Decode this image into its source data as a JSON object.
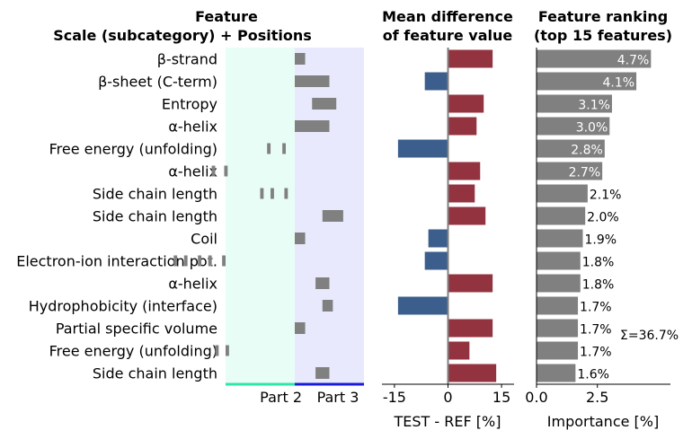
{
  "chart_data": [
    {
      "type": "table",
      "title": [
        "Feature",
        "Scale (subcategory)  +  Positions"
      ],
      "features": [
        "β-strand",
        "β-sheet (C-term)",
        "Entropy",
        "α-helix",
        "Free energy (unfolding)",
        "α-helix",
        "Side chain length",
        "Side chain length",
        "Coil",
        "Electron-ion interaction pot.",
        "α-helix",
        "Hydrophobicity (interface)",
        "Partial specific volume",
        "Free energy (unfolding)",
        "Side chain length"
      ],
      "parts": [
        {
          "label": "Part 2",
          "color": "#e8fdf5",
          "line_color": "#2ee6a8"
        },
        {
          "label": "Part 3",
          "color": "#e9e9fd",
          "line_color": "#1a1adb"
        }
      ],
      "position_range": [
        0,
        20
      ],
      "part_boundary": 10,
      "positions": [
        [
          {
            "from": 10,
            "to": 11.5
          }
        ],
        [
          {
            "from": 10,
            "to": 15
          }
        ],
        [
          {
            "from": 12.5,
            "to": 16
          }
        ],
        [
          {
            "from": 10,
            "to": 15
          }
        ],
        [
          {
            "from": 6,
            "to": 6.5
          },
          {
            "from": 8.2,
            "to": 8.7
          }
        ],
        [
          {
            "from": -2,
            "to": -1.5
          },
          {
            "from": -0.2,
            "to": 0.3
          }
        ],
        [
          {
            "from": 5,
            "to": 5.5
          },
          {
            "from": 6.5,
            "to": 7
          },
          {
            "from": 8.5,
            "to": 9
          }
        ],
        [
          {
            "from": 14,
            "to": 17
          }
        ],
        [
          {
            "from": 10,
            "to": 11.5
          }
        ],
        [
          {
            "from": -7.5,
            "to": -7
          },
          {
            "from": -6,
            "to": -5.5
          },
          {
            "from": -4,
            "to": -3.5
          },
          {
            "from": -2.5,
            "to": -2
          },
          {
            "from": -0.5,
            "to": 0
          }
        ],
        [
          {
            "from": 13,
            "to": 15
          }
        ],
        [
          {
            "from": 14,
            "to": 15.5
          }
        ],
        [
          {
            "from": 10,
            "to": 11.5
          }
        ],
        [
          {
            "from": -1.5,
            "to": -1
          },
          {
            "from": 0,
            "to": 0.5
          }
        ],
        [
          {
            "from": 13,
            "to": 15
          }
        ]
      ]
    },
    {
      "type": "bar",
      "orientation": "horizontal",
      "title": [
        "Mean difference",
        "of feature value"
      ],
      "xlabel": "TEST - REF [%]",
      "xlim": [
        -18.5,
        18.5
      ],
      "xticks": [
        -15,
        0,
        15
      ],
      "xtick_labels": [
        "-15",
        "0",
        "15"
      ],
      "values": [
        12.5,
        -6.5,
        10,
        8,
        -14,
        9,
        7.5,
        10.5,
        -5.5,
        -6.5,
        12.5,
        -14,
        12.5,
        6,
        13.5
      ],
      "colors": {
        "positive": "#943340",
        "negative": "#3b5e8c"
      }
    },
    {
      "type": "bar",
      "orientation": "horizontal",
      "title": [
        "Feature ranking",
        "(top 15 features)"
      ],
      "xlabel": "Importance [%]",
      "xlim": [
        0,
        5.5
      ],
      "xticks": [
        0,
        2.5
      ],
      "xtick_labels": [
        "0.0",
        "2.5"
      ],
      "values": [
        4.7,
        4.1,
        3.1,
        3.0,
        2.8,
        2.7,
        2.1,
        2.0,
        1.9,
        1.8,
        1.8,
        1.7,
        1.7,
        1.7,
        1.6
      ],
      "value_labels": [
        "4.7%",
        "4.1%",
        "3.1%",
        "3.0%",
        "2.8%",
        "2.7%",
        "2.1%",
        "2.0%",
        "1.9%",
        "1.8%",
        "1.8%",
        "1.7%",
        "1.7%",
        "1.7%",
        "1.6%"
      ],
      "color": "#808080",
      "annotation": "Σ=36.7%"
    }
  ]
}
